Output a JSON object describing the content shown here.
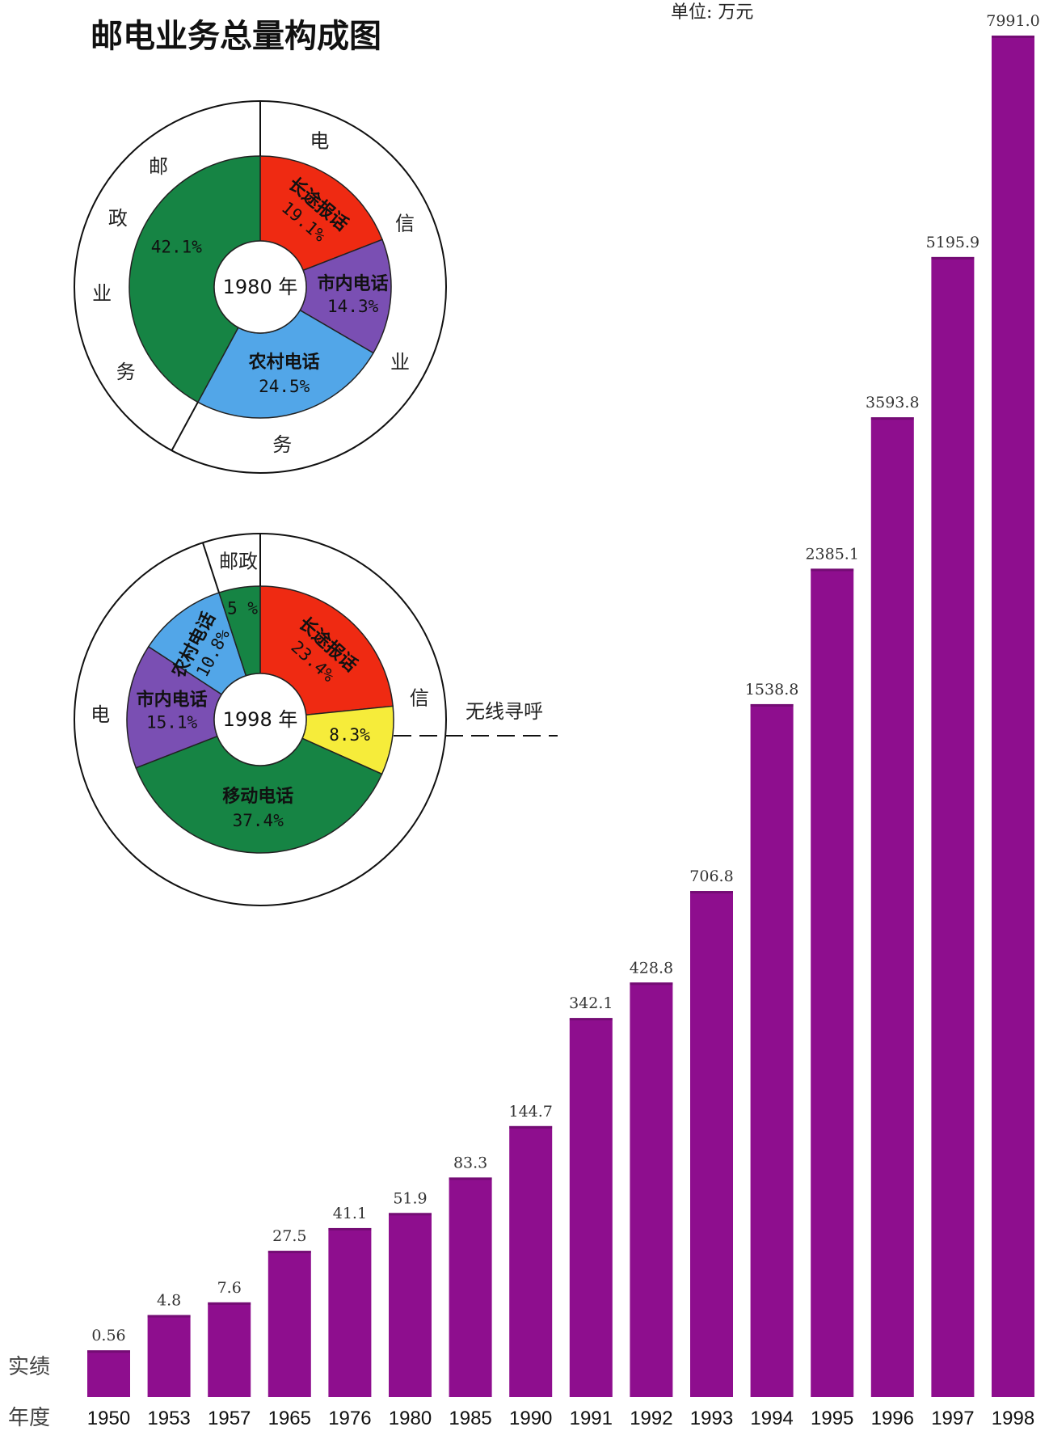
{
  "title": "邮电业务总量构成图",
  "unit": "单位: 万元",
  "row_labels": {
    "value": "实绩",
    "year": "年度"
  },
  "colors": {
    "bar": "#8e0e8e",
    "red": "#ef2a12",
    "purple": "#7a4fb3",
    "blue": "#52a6e8",
    "green": "#168444",
    "yellow": "#f6ec3a"
  },
  "chart_data": [
    {
      "type": "bar",
      "title": "邮电业务总量构成图",
      "ylabel": "单位: 万元",
      "categories": [
        "1950",
        "1953",
        "1957",
        "1965",
        "1976",
        "1980",
        "1985",
        "1990",
        "1991",
        "1992",
        "1993",
        "1994",
        "1995",
        "1996",
        "1997",
        "1998"
      ],
      "value_labels": [
        "0.56",
        "4.8",
        "7.6",
        "27.5",
        "41.1",
        "51.9",
        "83.3",
        "144.7",
        "342.1",
        "428.8",
        "706.8",
        "1538.8",
        "2385.1",
        "3593.8",
        "5195.9",
        "7991.0"
      ],
      "values": [
        0.56,
        4.8,
        7.6,
        27.5,
        41.1,
        51.9,
        83.3,
        144.7,
        342.1,
        428.8,
        706.8,
        1538.8,
        2385.1,
        3593.8,
        5195.9,
        7991.0
      ],
      "scale": "non-linear (bar heights not proportional)",
      "grid": false
    },
    {
      "type": "pie",
      "center_label": "1980 年",
      "ring_labels": [
        "邮",
        "政",
        "业",
        "务",
        "电",
        "信",
        "业",
        "务"
      ],
      "slices": [
        {
          "label": "长途报话",
          "pct_label": "19.1%",
          "value": 19.1,
          "color": "red"
        },
        {
          "label": "市内电话",
          "pct_label": "14.3%",
          "value": 14.3,
          "color": "purple"
        },
        {
          "label": "农村电话",
          "pct_label": "24.5%",
          "value": 24.5,
          "color": "blue"
        },
        {
          "label": "",
          "pct_label": "42.1%",
          "value": 42.1,
          "color": "green"
        }
      ]
    },
    {
      "type": "pie",
      "center_label": "1998 年",
      "ring_labels": [
        "邮政",
        "电",
        "信"
      ],
      "callout": "无线寻呼",
      "slices": [
        {
          "label": "长途报话",
          "pct_label": "23.4%",
          "value": 23.4,
          "color": "red"
        },
        {
          "label": "",
          "pct_label": "8.3%",
          "value": 8.3,
          "color": "yellow"
        },
        {
          "label": "移动电话",
          "pct_label": "37.4%",
          "value": 37.4,
          "color": "green"
        },
        {
          "label": "市内电话",
          "pct_label": "15.1%",
          "value": 15.1,
          "color": "purple"
        },
        {
          "label": "农村电话",
          "pct_label": "10.8%",
          "value": 10.8,
          "color": "blue"
        },
        {
          "label": "",
          "pct_label": "5 %",
          "value": 5,
          "color": "green"
        }
      ]
    }
  ]
}
